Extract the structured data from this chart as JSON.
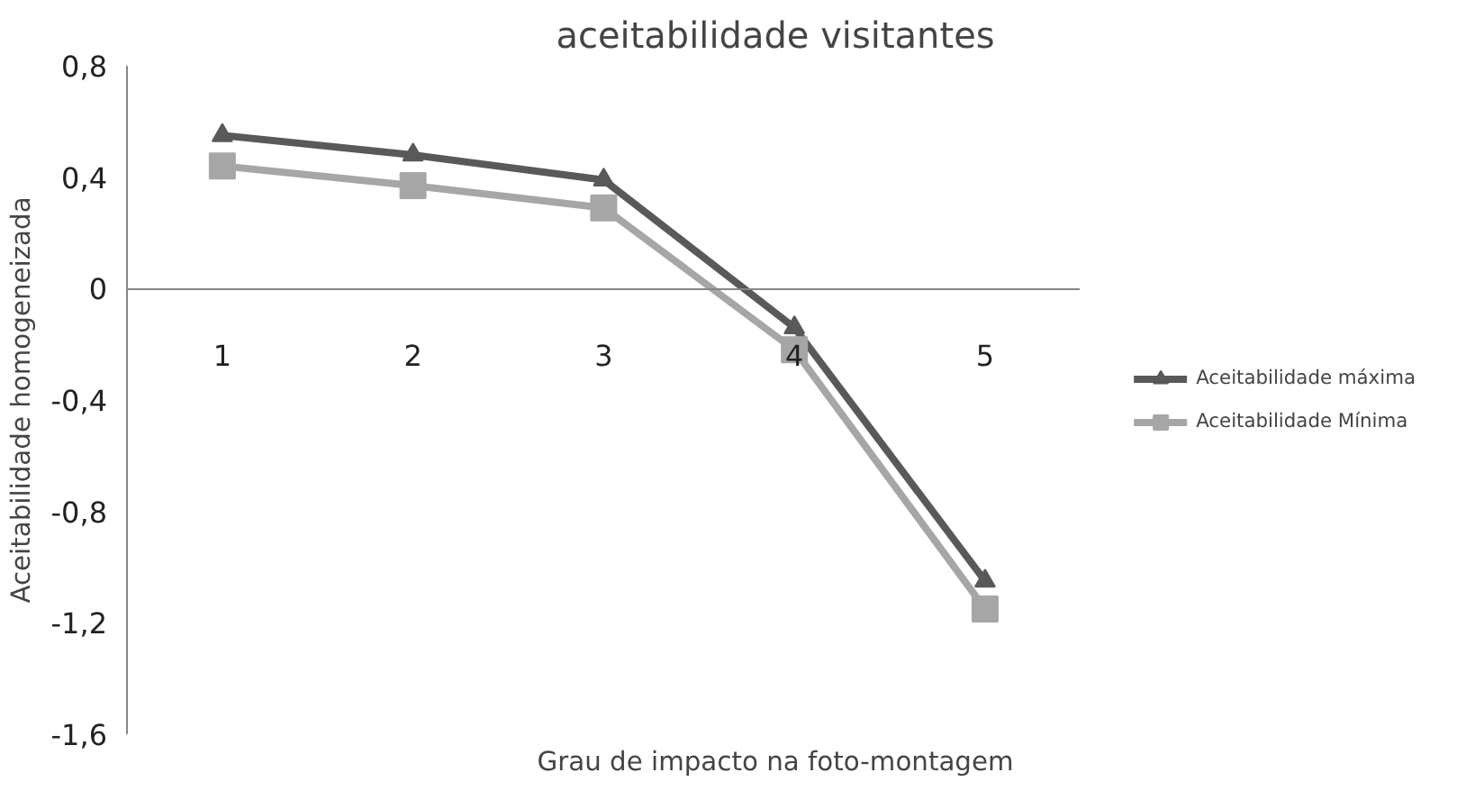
{
  "chart_data": {
    "type": "line",
    "title": "aceitabilidade visitantes",
    "xlabel": "Grau de impacto na foto-montagem",
    "ylabel": "Aceitabilidade homogeneizada",
    "categories": [
      "1",
      "2",
      "3",
      "4",
      "5"
    ],
    "series": [
      {
        "name": "Aceitabilidade máxima",
        "color": "#595959",
        "marker": "triangle",
        "values": [
          0.55,
          0.48,
          0.39,
          -0.14,
          -1.05
        ]
      },
      {
        "name": "Aceitabilidade Mínima",
        "color": "#a6a6a6",
        "marker": "square",
        "values": [
          0.44,
          0.37,
          0.29,
          -0.22,
          -1.15
        ]
      }
    ],
    "ylim": [
      -1.6,
      0.8
    ],
    "yticks": [
      {
        "value": -1.6,
        "label": "-1,6"
      },
      {
        "value": -1.2,
        "label": "-1,2"
      },
      {
        "value": -0.8,
        "label": "-0,8"
      },
      {
        "value": -0.4,
        "label": "-0,4"
      },
      0,
      {
        "value": 0.4,
        "label": "0,4"
      },
      {
        "value": 0.8,
        "label": "0,8"
      }
    ],
    "grid": false,
    "legend": "right",
    "line_style": "solid"
  }
}
